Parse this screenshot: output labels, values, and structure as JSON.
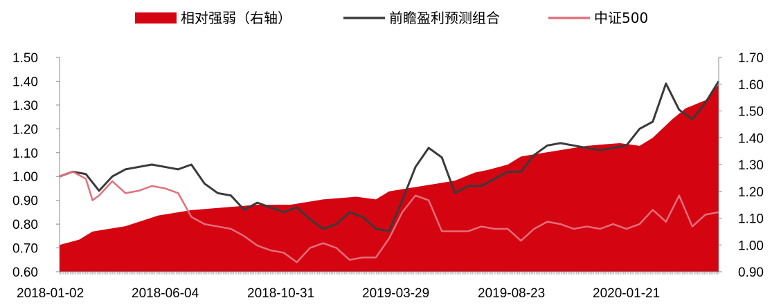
{
  "chart_data": {
    "type": "line",
    "title": "",
    "legend": {
      "placement": "top",
      "entries": [
        {
          "label": "相对强弱（右轴）",
          "type": "area",
          "color": "#d40511",
          "axis": "right"
        },
        {
          "label": "前瞻盈利预测组合",
          "type": "line",
          "color": "#3a3a3a",
          "axis": "left"
        },
        {
          "label": "中证500",
          "type": "line",
          "color": "#e2707c",
          "axis": "left"
        }
      ]
    },
    "x_tick_labels": [
      "2018-01-02",
      "2018-06-04",
      "2018-10-31",
      "2019-03-29",
      "2019-08-23",
      "2020-01-21"
    ],
    "y_left": {
      "range": [
        0.6,
        1.5
      ],
      "tick_labels": [
        "1.50",
        "1.40",
        "1.30",
        "1.20",
        "1.10",
        "1.00",
        "0.90",
        "0.80",
        "0.70",
        "0.60"
      ]
    },
    "y_right": {
      "range": [
        0.9,
        1.7
      ],
      "tick_labels": [
        "1.70",
        "1.60",
        "1.50",
        "1.40",
        "1.30",
        "1.20",
        "1.10",
        "1.00",
        "0.90"
      ]
    },
    "series": [
      {
        "name": "相对强弱（右轴）",
        "axis": "right",
        "x": [
          0,
          0.03,
          0.05,
          0.1,
          0.15,
          0.2,
          0.25,
          0.3,
          0.35,
          0.4,
          0.45,
          0.48,
          0.5,
          0.55,
          0.6,
          0.63,
          0.65,
          0.68,
          0.7,
          0.75,
          0.8,
          0.85,
          0.88,
          0.9,
          0.93,
          0.95,
          0.98,
          1.0
        ],
        "values": [
          1.0,
          1.02,
          1.05,
          1.07,
          1.11,
          1.13,
          1.14,
          1.15,
          1.15,
          1.17,
          1.18,
          1.17,
          1.2,
          1.22,
          1.24,
          1.27,
          1.28,
          1.3,
          1.33,
          1.35,
          1.37,
          1.38,
          1.37,
          1.4,
          1.47,
          1.51,
          1.54,
          1.6
        ]
      },
      {
        "name": "前瞻盈利预测组合",
        "axis": "left",
        "x": [
          0,
          0.02,
          0.04,
          0.06,
          0.08,
          0.1,
          0.12,
          0.14,
          0.16,
          0.18,
          0.2,
          0.22,
          0.24,
          0.26,
          0.28,
          0.3,
          0.32,
          0.34,
          0.36,
          0.38,
          0.4,
          0.42,
          0.44,
          0.46,
          0.48,
          0.5,
          0.52,
          0.54,
          0.56,
          0.58,
          0.6,
          0.62,
          0.64,
          0.66,
          0.68,
          0.7,
          0.72,
          0.74,
          0.76,
          0.78,
          0.8,
          0.82,
          0.84,
          0.86,
          0.88,
          0.9,
          0.92,
          0.94,
          0.96,
          0.98,
          1.0
        ],
        "values": [
          1.0,
          1.02,
          1.01,
          0.94,
          1.0,
          1.03,
          1.04,
          1.05,
          1.04,
          1.03,
          1.05,
          0.97,
          0.93,
          0.92,
          0.86,
          0.89,
          0.87,
          0.85,
          0.87,
          0.82,
          0.78,
          0.8,
          0.85,
          0.83,
          0.78,
          0.77,
          0.9,
          1.04,
          1.12,
          1.08,
          0.93,
          0.96,
          0.96,
          0.99,
          1.02,
          1.02,
          1.09,
          1.13,
          1.14,
          1.13,
          1.12,
          1.11,
          1.12,
          1.13,
          1.2,
          1.23,
          1.39,
          1.28,
          1.24,
          1.31,
          1.4
        ]
      },
      {
        "name": "中证500",
        "axis": "left",
        "x": [
          0,
          0.02,
          0.04,
          0.05,
          0.06,
          0.08,
          0.1,
          0.12,
          0.14,
          0.16,
          0.18,
          0.2,
          0.22,
          0.24,
          0.26,
          0.28,
          0.3,
          0.32,
          0.34,
          0.36,
          0.38,
          0.4,
          0.42,
          0.44,
          0.46,
          0.48,
          0.5,
          0.52,
          0.54,
          0.56,
          0.58,
          0.6,
          0.62,
          0.64,
          0.66,
          0.68,
          0.7,
          0.72,
          0.74,
          0.76,
          0.78,
          0.8,
          0.82,
          0.84,
          0.86,
          0.88,
          0.9,
          0.92,
          0.94,
          0.96,
          0.98,
          1.0
        ],
        "values": [
          1.0,
          1.02,
          0.99,
          0.9,
          0.92,
          0.98,
          0.93,
          0.94,
          0.96,
          0.95,
          0.93,
          0.83,
          0.8,
          0.79,
          0.78,
          0.75,
          0.71,
          0.69,
          0.68,
          0.64,
          0.7,
          0.72,
          0.7,
          0.65,
          0.66,
          0.66,
          0.74,
          0.85,
          0.92,
          0.9,
          0.77,
          0.77,
          0.77,
          0.79,
          0.78,
          0.78,
          0.73,
          0.78,
          0.81,
          0.8,
          0.78,
          0.79,
          0.78,
          0.8,
          0.78,
          0.8,
          0.86,
          0.81,
          0.92,
          0.79,
          0.84,
          0.85
        ]
      }
    ],
    "grid": false
  }
}
